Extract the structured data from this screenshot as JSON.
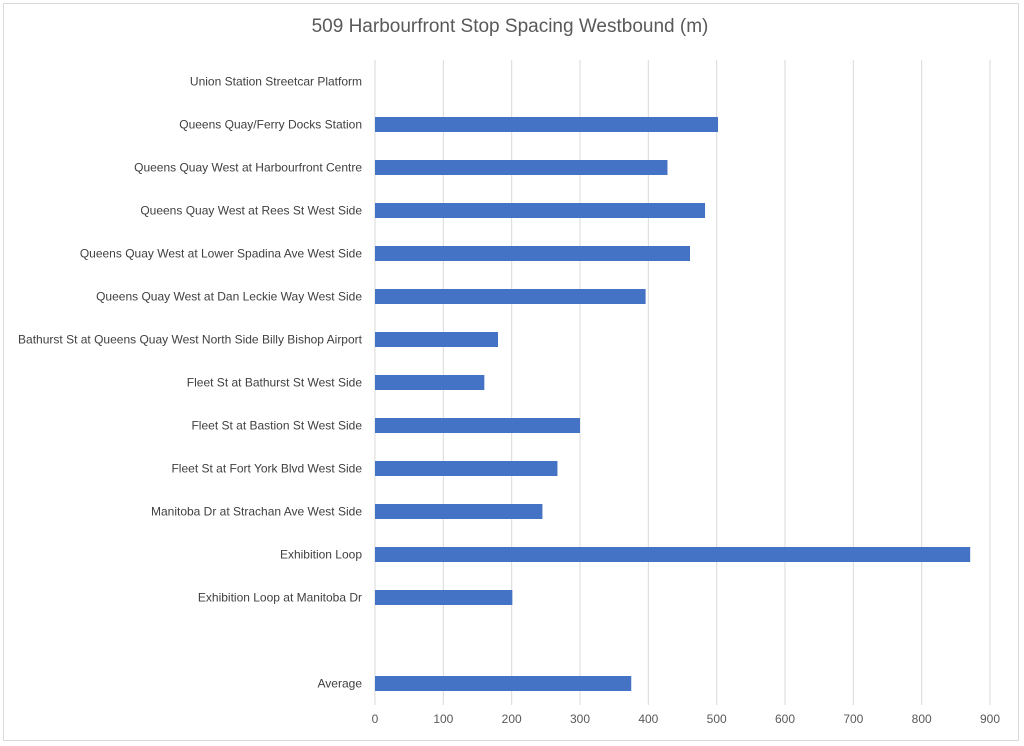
{
  "chart_data": {
    "type": "bar",
    "orientation": "horizontal",
    "title": "509 Harbourfront Stop Spacing Westbound (m)",
    "xlabel": "",
    "ylabel": "",
    "xlim": [
      0,
      900
    ],
    "ticks": [
      0,
      100,
      200,
      300,
      400,
      500,
      600,
      700,
      800,
      900
    ],
    "grid": true,
    "legend": "none",
    "bar_color": "#4472c4",
    "categories": [
      "Union Station Streetcar Platform",
      "Queens Quay/Ferry Docks Station",
      "Queens Quay West at Harbourfront Centre",
      "Queens Quay West at Rees St West Side",
      "Queens Quay West at Lower Spadina Ave West Side",
      "Queens Quay West at Dan Leckie Way West Side",
      "Bathurst St at Queens Quay West North Side Billy Bishop Airport",
      "Fleet St at Bathurst St West Side",
      "Fleet St at Bastion St West Side",
      "Fleet St at Fort York Blvd West Side",
      "Manitoba Dr at Strachan Ave West Side",
      "Exhibition Loop",
      "Exhibition Loop at Manitoba Dr",
      "",
      "Average"
    ],
    "values": [
      null,
      502,
      428,
      483,
      461,
      396,
      180,
      160,
      300,
      267,
      245,
      871,
      201,
      null,
      375
    ]
  }
}
